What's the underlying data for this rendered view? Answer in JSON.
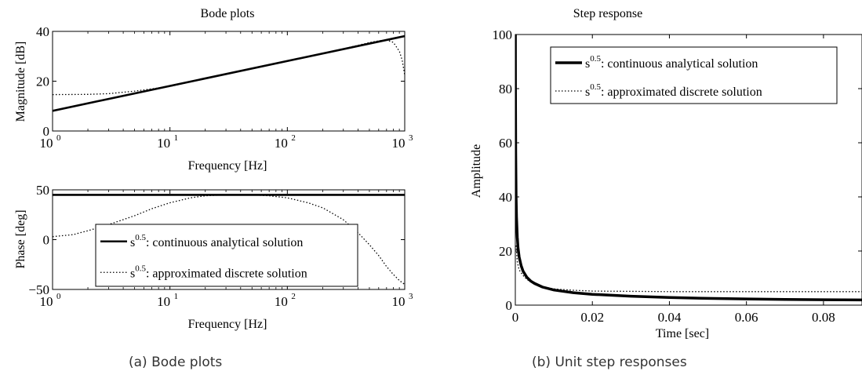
{
  "chart_data": [
    {
      "type": "line",
      "title": "Bode plots",
      "xlabel": "Frequency [Hz]",
      "ylabel": "Magnitude [dB]",
      "xscale": "log",
      "xlim": [
        1,
        1000
      ],
      "ylim": [
        0,
        40
      ],
      "xticks": [
        1,
        10,
        100,
        1000
      ],
      "xtick_labels": [
        [
          "10",
          "0"
        ],
        [
          "10",
          "1"
        ],
        [
          "10",
          "2"
        ],
        [
          "10",
          "3"
        ]
      ],
      "yticks": [
        0,
        20,
        40
      ],
      "ytick_labels": [
        "0",
        "20",
        "40"
      ],
      "series": [
        {
          "name": "continuous",
          "style": "solid",
          "x": [
            1,
            1000
          ],
          "y": [
            8.1,
            38.1
          ]
        },
        {
          "name": "discrete",
          "style": "dotted",
          "x": [
            1,
            2,
            3,
            5,
            8,
            10,
            20,
            30,
            50,
            100,
            200,
            300,
            400,
            500,
            600,
            700,
            800,
            900,
            950,
            1000
          ],
          "y": [
            14.6,
            14.7,
            15.0,
            16.0,
            17.3,
            17.9,
            21.0,
            22.8,
            25.1,
            28.1,
            31.2,
            33.0,
            34.4,
            35.5,
            36.2,
            36.5,
            35.6,
            32.0,
            28.5,
            22.5
          ]
        }
      ]
    },
    {
      "type": "line",
      "xlabel": "Frequency [Hz]",
      "ylabel": "Phase [deg]",
      "xscale": "log",
      "xlim": [
        1,
        1000
      ],
      "ylim": [
        -50,
        50
      ],
      "xticks": [
        1,
        10,
        100,
        1000
      ],
      "xtick_labels": [
        [
          "10",
          "0"
        ],
        [
          "10",
          "1"
        ],
        [
          "10",
          "2"
        ],
        [
          "10",
          "3"
        ]
      ],
      "yticks": [
        -50,
        0,
        50
      ],
      "ytick_labels": [
        "−50",
        "0",
        "50"
      ],
      "legend": {
        "position": "lower-right",
        "entries": [
          {
            "sup": "0.5",
            "base": "s",
            "text": ": continuous analytical solution",
            "style": "solid"
          },
          {
            "sup": "0.5",
            "base": "s",
            "text": ": approximated discrete solution",
            "style": "dotted"
          }
        ]
      },
      "series": [
        {
          "name": "continuous",
          "style": "solid",
          "x": [
            1,
            1000
          ],
          "y": [
            45,
            45
          ]
        },
        {
          "name": "discrete",
          "style": "dotted",
          "x": [
            1,
            1.5,
            2,
            3,
            5,
            7,
            10,
            15,
            20,
            30,
            50,
            70,
            100,
            150,
            200,
            300,
            400,
            500,
            600,
            700,
            800,
            900,
            1000
          ],
          "y": [
            3,
            5,
            9,
            15,
            24,
            31,
            37,
            42,
            44,
            45,
            45,
            44,
            42,
            37,
            32,
            20,
            7,
            -5,
            -16,
            -27,
            -35,
            -41,
            -45
          ]
        }
      ]
    },
    {
      "type": "line",
      "title": "Step response",
      "xlabel": "Time [sec]",
      "ylabel": "Amplitude",
      "xlim": [
        0,
        0.09
      ],
      "ylim": [
        0,
        100
      ],
      "xticks": [
        0,
        0.02,
        0.04,
        0.06,
        0.08
      ],
      "xtick_labels": [
        "0",
        "0.02",
        "0.04",
        "0.06",
        "0.08"
      ],
      "yticks": [
        0,
        20,
        40,
        60,
        80,
        100
      ],
      "ytick_labels": [
        "0",
        "20",
        "40",
        "60",
        "80",
        "100"
      ],
      "legend": {
        "position": "top-right",
        "entries": [
          {
            "sup": "0.5",
            "base": "s",
            "text": ": continuous analytical solution",
            "style": "solid"
          },
          {
            "sup": "0.5",
            "base": "s",
            "text": ": approximated discrete solution",
            "style": "dotted"
          }
        ]
      },
      "series": [
        {
          "name": "continuous",
          "style": "solid",
          "x": [
            3e-05,
            5e-05,
            0.0001,
            0.0002,
            0.0003,
            0.0005,
            0.0007,
            0.001,
            0.0015,
            0.002,
            0.003,
            0.004,
            0.005,
            0.007,
            0.01,
            0.015,
            0.02,
            0.03,
            0.04,
            0.05,
            0.06,
            0.07,
            0.08,
            0.09
          ],
          "y": [
            100,
            79.8,
            56.4,
            39.9,
            32.6,
            25.2,
            21.3,
            17.8,
            14.6,
            12.6,
            10.3,
            8.9,
            8.0,
            6.7,
            5.6,
            4.6,
            4.0,
            3.3,
            2.8,
            2.5,
            2.3,
            2.1,
            2.0,
            1.9
          ]
        },
        {
          "name": "discrete",
          "style": "dotted",
          "x": [
            0.0002,
            0.0005,
            0.001,
            0.002,
            0.003,
            0.004,
            0.005,
            0.007,
            0.01,
            0.015,
            0.02,
            0.03,
            0.04,
            0.05,
            0.06,
            0.07,
            0.08,
            0.09
          ],
          "y": [
            22,
            16,
            13,
            11,
            9.5,
            8.6,
            7.8,
            6.8,
            6.0,
            5.5,
            5.2,
            5.1,
            5.0,
            5.0,
            5.0,
            5.0,
            5.0,
            5.0
          ]
        }
      ]
    }
  ],
  "captions": {
    "left": "(a)  Bode plots",
    "right": "(b)  Unit step responses"
  }
}
